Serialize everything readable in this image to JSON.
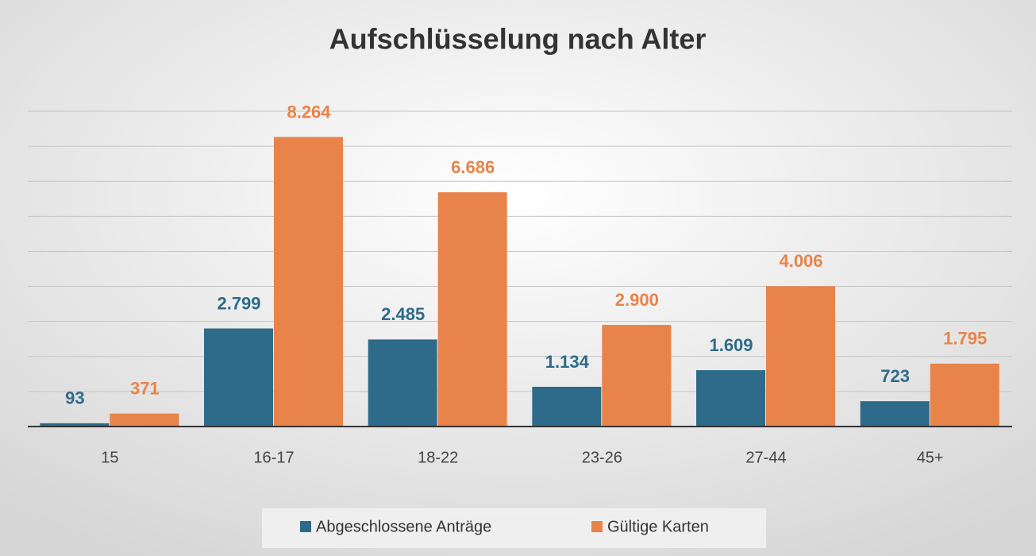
{
  "chart_data": {
    "type": "bar",
    "title": "Aufschlüsselung nach Alter",
    "categories": [
      "15",
      "16-17",
      "18-22",
      "23-26",
      "27-44",
      "45+"
    ],
    "series": [
      {
        "name": "Abgeschlossene Anträge",
        "color": "#2e6b8a",
        "values": [
          93,
          2799,
          2485,
          1134,
          1609,
          723
        ],
        "value_labels": [
          "93",
          "2.799",
          "2.485",
          "1.134",
          "1.609",
          "723"
        ]
      },
      {
        "name": "Gültige Karten",
        "color": "#e8834a",
        "values": [
          371,
          8264,
          6686,
          2900,
          4006,
          1795
        ],
        "value_labels": [
          "371",
          "8.264",
          "6.686",
          "2.900",
          "4.006",
          "1.795"
        ]
      }
    ],
    "ylim": [
      0,
      9000
    ],
    "yticks": [
      0,
      1000,
      2000,
      3000,
      4000,
      5000,
      6000,
      7000,
      8000,
      9000
    ],
    "grid": true
  }
}
